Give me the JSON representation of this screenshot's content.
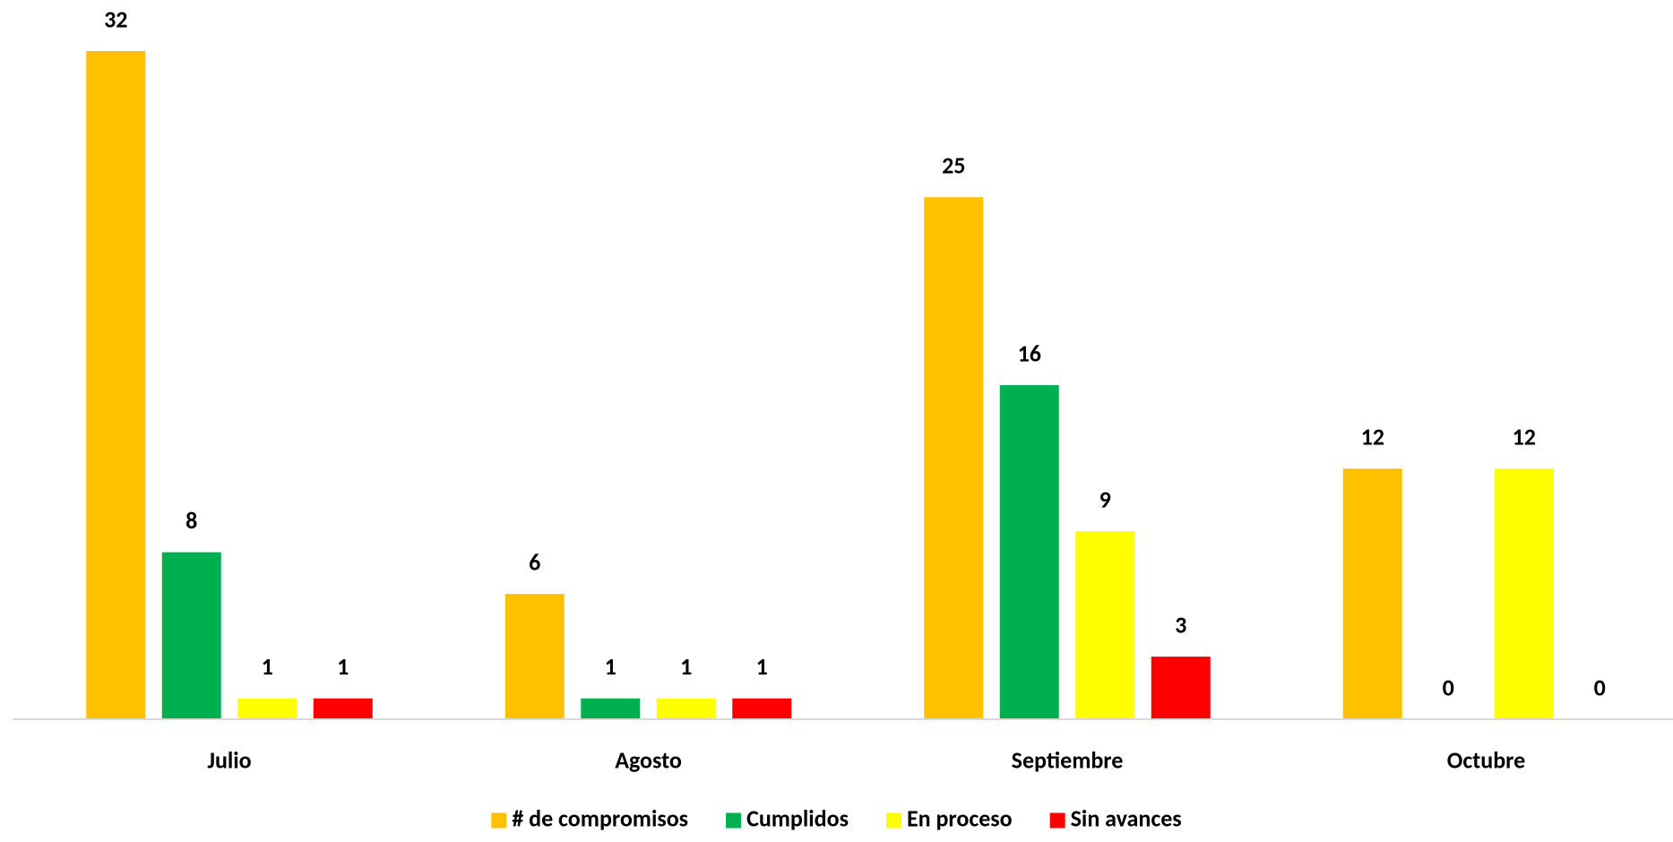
{
  "chart_data": {
    "type": "bar",
    "categories": [
      "Julio",
      "Agosto",
      "Septiembre",
      "Octubre"
    ],
    "series": [
      {
        "name": "# de compromisos",
        "color": "#FFC000",
        "values": [
          32,
          6,
          25,
          12
        ]
      },
      {
        "name": "Cumplidos",
        "color": "#00B050",
        "values": [
          8,
          1,
          16,
          0
        ]
      },
      {
        "name": "En proceso",
        "color": "#FFFF00",
        "values": [
          1,
          1,
          9,
          12
        ]
      },
      {
        "name": "Sin avances",
        "color": "#FF0000",
        "values": [
          1,
          1,
          3,
          0
        ]
      }
    ],
    "legend": "bottom"
  }
}
